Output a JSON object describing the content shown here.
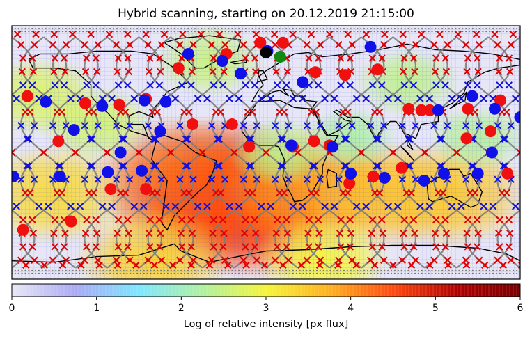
{
  "chart_data": {
    "type": "heatmap",
    "title": "Hybrid scanning, starting on 20.12.2019 21:15:00",
    "colorbar": {
      "label": "Log of relative intensity [px flux]",
      "range": [
        0,
        6
      ],
      "ticks": [
        "0",
        "1",
        "2",
        "3",
        "4",
        "5",
        "6"
      ],
      "colormap": [
        "#e8e8f6",
        "#a9a9f4",
        "#7ee7ff",
        "#b0f0a0",
        "#f5f53a",
        "#ffb020",
        "#ff4a10",
        "#b00000",
        "#7a0000"
      ]
    },
    "map": {
      "projection": "equirectangular",
      "lon_range": [
        -180,
        180
      ],
      "lat_range": [
        -90,
        90
      ],
      "intensity_blobs": [
        {
          "lon": -30,
          "lat": -30,
          "level": 4.8
        },
        {
          "lon": -55,
          "lat": -20,
          "level": 4.2
        },
        {
          "lon": -10,
          "lat": -40,
          "level": 4.5
        },
        {
          "lon": 30,
          "lat": -25,
          "level": 3.9
        },
        {
          "lon": 80,
          "lat": -30,
          "level": 3.6
        },
        {
          "lon": 130,
          "lat": -30,
          "level": 3.5
        },
        {
          "lon": -150,
          "lat": -30,
          "level": 3.3
        },
        {
          "lon": -120,
          "lat": 20,
          "level": 2.6
        },
        {
          "lon": -160,
          "lat": 40,
          "level": 2.7
        },
        {
          "lon": 100,
          "lat": 50,
          "level": 2.4
        },
        {
          "lon": 150,
          "lat": 10,
          "level": 2.3
        },
        {
          "lon": -40,
          "lat": 65,
          "level": 2.5
        },
        {
          "lon": 60,
          "lat": 10,
          "level": 2.2
        },
        {
          "lon": 10,
          "lat": 0,
          "level": 2.4
        },
        {
          "lon": -80,
          "lat": -75,
          "level": 3.4
        },
        {
          "lon": 40,
          "lat": -75,
          "level": 3.0
        }
      ],
      "red_circles": [
        [
          -169,
          40
        ],
        [
          -147,
          8
        ],
        [
          -172,
          -55
        ],
        [
          -128,
          35
        ],
        [
          -138,
          -49
        ],
        [
          -104,
          34
        ],
        [
          -110,
          -26
        ],
        [
          -85,
          38
        ],
        [
          -85,
          -26
        ],
        [
          -62,
          60
        ],
        [
          -52,
          20
        ],
        [
          -28,
          70
        ],
        [
          -24,
          20
        ],
        [
          -4,
          78
        ],
        [
          -12,
          4
        ],
        [
          12,
          78
        ],
        [
          19,
          4
        ],
        [
          34,
          8
        ],
        [
          35,
          57
        ],
        [
          56,
          55
        ],
        [
          45,
          5
        ],
        [
          59,
          -22
        ],
        [
          79,
          59
        ],
        [
          76,
          -17
        ],
        [
          96,
          -11
        ],
        [
          110,
          30
        ],
        [
          101,
          31
        ],
        [
          116,
          30
        ],
        [
          142,
          10
        ],
        [
          143,
          31
        ],
        [
          159,
          15
        ],
        [
          166,
          37
        ],
        [
          171,
          -15
        ]
      ],
      "blue_circles": [
        [
          -179,
          -17
        ],
        [
          -156,
          36
        ],
        [
          -136,
          16
        ],
        [
          -146,
          -17
        ],
        [
          -116,
          33
        ],
        [
          -103,
          0
        ],
        [
          -112,
          -14
        ],
        [
          -88,
          -13
        ],
        [
          -86,
          37
        ],
        [
          -71,
          36
        ],
        [
          -75,
          15
        ],
        [
          -55,
          70
        ],
        [
          -31,
          65
        ],
        [
          -18,
          56
        ],
        [
          1,
          72
        ],
        [
          26,
          50
        ],
        [
          18,
          5
        ],
        [
          47,
          4
        ],
        [
          60,
          -15
        ],
        [
          74,
          75
        ],
        [
          84,
          -18
        ],
        [
          112,
          -20
        ],
        [
          122,
          30
        ],
        [
          126,
          -15
        ],
        [
          146,
          40
        ],
        [
          150,
          -15
        ],
        [
          162,
          31
        ],
        [
          180,
          25
        ],
        [
          160,
          0
        ]
      ],
      "black_circle": [
        0,
        71
      ],
      "green_circle": [
        10,
        68
      ]
    }
  }
}
